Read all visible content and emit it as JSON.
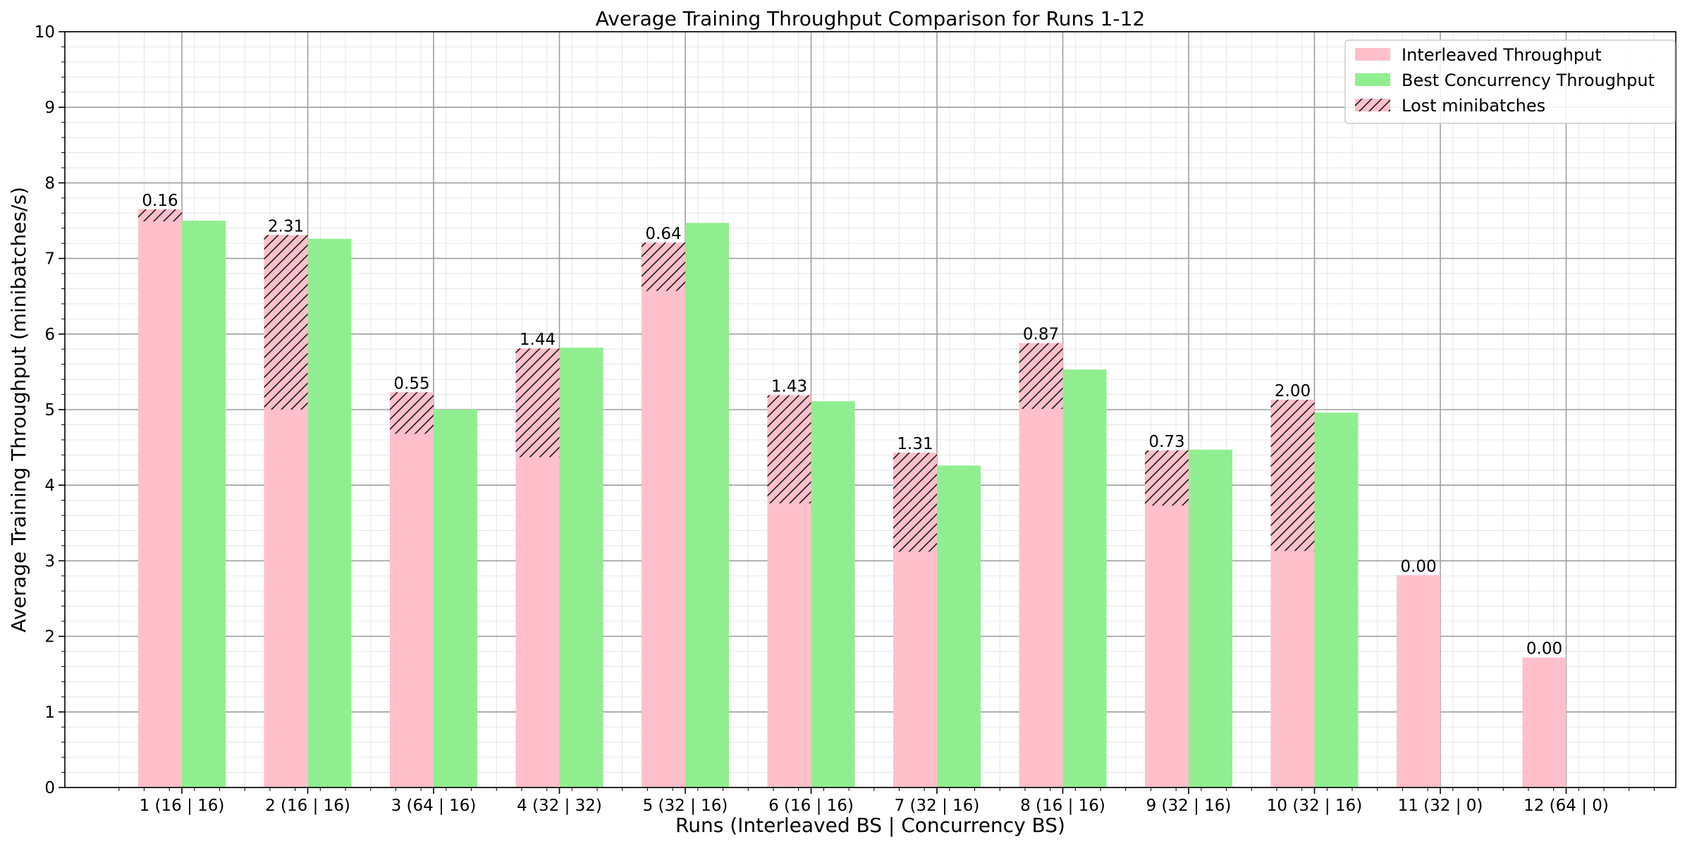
{
  "chart_data": {
    "type": "bar",
    "title": "Average Training Throughput Comparison for Runs 1-12",
    "xlabel": "Runs (Interleaved BS | Concurrency BS)",
    "ylabel": "Average Training Throughput (minibatches/s)",
    "ylim": [
      0,
      10
    ],
    "yticks": [
      "0",
      "1",
      "2",
      "3",
      "4",
      "5",
      "6",
      "7",
      "8",
      "9",
      "10"
    ],
    "grid": "major and minor",
    "legend_position": "top-right",
    "categories": [
      "1 (16 | 16)",
      "2 (16 | 16)",
      "3 (64 | 16)",
      "4 (32 | 32)",
      "5 (32 | 16)",
      "6 (16 | 16)",
      "7 (32 | 16)",
      "8 (16 | 16)",
      "9 (32 | 16)",
      "10 (32 | 16)",
      "11 (32 | 0)",
      "12 (64 | 0)"
    ],
    "series": [
      {
        "name": "Interleaved Throughput",
        "color": "#ffc0cb",
        "values": [
          7.65,
          7.31,
          5.23,
          5.81,
          7.21,
          5.19,
          4.43,
          5.88,
          4.46,
          5.13,
          2.81,
          1.72
        ]
      },
      {
        "name": "Best Concurrency Throughput",
        "color": "#90ee90",
        "values": [
          7.5,
          7.26,
          5.0,
          5.82,
          7.47,
          5.11,
          4.26,
          5.53,
          4.47,
          4.96,
          null,
          null
        ]
      },
      {
        "name": "Lost minibatches",
        "color": "#ffc0cb",
        "pattern": "hatch",
        "values": [
          0.16,
          2.31,
          0.55,
          1.44,
          0.64,
          1.43,
          1.31,
          0.87,
          0.73,
          2.0,
          0.0,
          0.0
        ],
        "labels": [
          "0.16",
          "2.31",
          "0.55",
          "1.44",
          "0.64",
          "1.43",
          "1.31",
          "0.87",
          "0.73",
          "2.00",
          "0.00",
          "0.00"
        ]
      }
    ]
  }
}
